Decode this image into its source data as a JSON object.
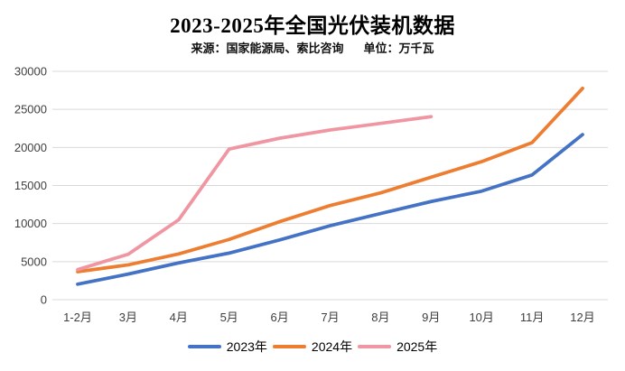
{
  "chart_data": {
    "type": "line",
    "title": "2023-2025年全国光伏装机数据",
    "source_label": "来源：国家能源局、索比咨询",
    "unit_label": "单位：万千瓦",
    "xlabel": "",
    "ylabel": "",
    "categories": [
      "1-2月",
      "3月",
      "4月",
      "5月",
      "6月",
      "7月",
      "8月",
      "9月",
      "10月",
      "11月",
      "12月"
    ],
    "series": [
      {
        "name": "2023年",
        "color": "#4472C4",
        "values": [
          2037,
          3366,
          4831,
          6121,
          7842,
          9716,
          11316,
          12894,
          14256,
          16388,
          21688
        ]
      },
      {
        "name": "2024年",
        "color": "#ED7D31",
        "values": [
          3672,
          4574,
          6011,
          7915,
          10248,
          12371,
          14026,
          16088,
          18130,
          20632,
          27757
        ]
      },
      {
        "name": "2025年",
        "color": "#F096A3",
        "values": [
          3947,
          5971,
          10493,
          19785,
          21211,
          22292,
          23161,
          24040
        ]
      }
    ],
    "ylim": [
      0,
      30000
    ],
    "yticks": [
      0,
      5000,
      10000,
      15000,
      20000,
      25000,
      30000
    ],
    "grid": true,
    "gridline_color": "#D9D9D9",
    "legend_position": "bottom"
  }
}
